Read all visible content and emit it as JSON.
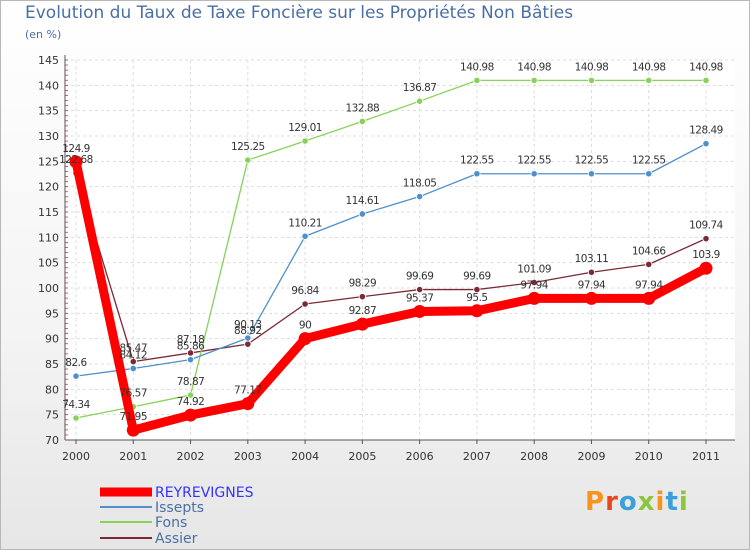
{
  "chart_data": {
    "type": "line",
    "title": "Evolution du Taux de Taxe Foncière sur les Propriétés Non Bâties",
    "subtitle": "(en %)",
    "xlabel": "",
    "ylabel": "",
    "x": [
      "2000",
      "2001",
      "2002",
      "2003",
      "2004",
      "2005",
      "2006",
      "2007",
      "2008",
      "2009",
      "2010",
      "2011"
    ],
    "ylim": [
      70,
      145
    ],
    "yticks": [
      70,
      75,
      80,
      85,
      90,
      95,
      100,
      105,
      110,
      115,
      120,
      125,
      130,
      135,
      140,
      145
    ],
    "legend_position": "bottom-left",
    "series": [
      {
        "name": "REYREVIGNES",
        "color": "#ff0000",
        "values": [
          124.9,
          71.95,
          74.92,
          77.17,
          90,
          92.87,
          95.37,
          95.5,
          97.94,
          97.94,
          97.94,
          103.9
        ],
        "labels": [
          "124.9",
          "71.95",
          "74.92",
          "77.17",
          "90",
          "92.87",
          "95.37",
          "95.5",
          "97.94",
          "97.94",
          "97.94",
          "103.9"
        ]
      },
      {
        "name": "Issepts",
        "color": "#4f8fcc",
        "values": [
          82.6,
          84.12,
          85.86,
          90.13,
          110.21,
          114.61,
          118.05,
          122.55,
          122.55,
          122.55,
          122.55,
          128.49
        ],
        "labels": [
          "82.6",
          "84.12",
          "85.86",
          "90.13",
          "110.21",
          "114.61",
          "118.05",
          "122.55",
          "122.55",
          "122.55",
          "122.55",
          "128.49"
        ]
      },
      {
        "name": "Fons",
        "color": "#88d258",
        "values": [
          74.34,
          76.57,
          78.87,
          125.25,
          129.01,
          132.88,
          136.87,
          140.98,
          140.98,
          140.98,
          140.98,
          140.98
        ],
        "labels": [
          "74.34",
          "76.57",
          "78.87",
          "125.25",
          "129.01",
          "132.88",
          "136.87",
          "140.98",
          "140.98",
          "140.98",
          "140.98",
          "140.98"
        ]
      },
      {
        "name": "Assier",
        "color": "#7a2a34",
        "values": [
          122.68,
          85.47,
          87.18,
          88.92,
          96.84,
          98.29,
          99.69,
          99.69,
          101.09,
          103.11,
          104.66,
          109.74
        ],
        "labels": [
          "122.68",
          "85.47",
          "87.18",
          "88.92",
          "96.84",
          "98.29",
          "99.69",
          "99.69",
          "101.09",
          "103.11",
          "104.66",
          "109.74"
        ]
      }
    ]
  },
  "logo": {
    "text": "Proxiti",
    "colors": [
      "#f7941d",
      "#e8481c",
      "#3aa0da",
      "#8cc63f",
      "#f7941d",
      "#3aa0da",
      "#8cc63f"
    ]
  }
}
